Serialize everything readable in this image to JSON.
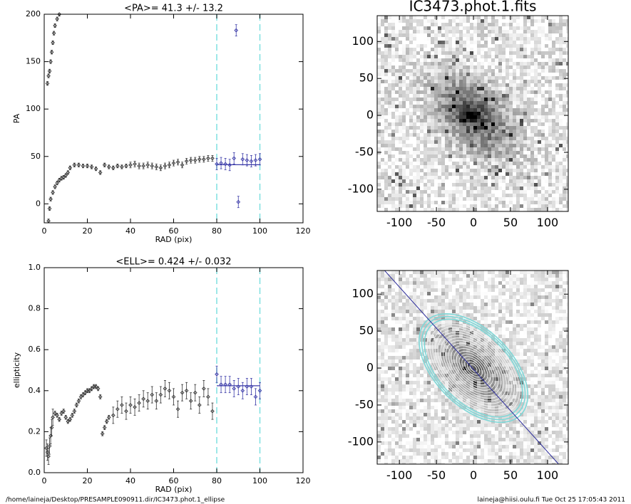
{
  "chart_data": [
    {
      "type": "scatter",
      "title": "<PA>=  41.3 +/-  13.2",
      "xlabel": "RAD (pix)",
      "ylabel": "PA",
      "xlim": [
        0,
        120
      ],
      "ylim": [
        -20,
        200
      ],
      "xticks": [
        0,
        20,
        40,
        60,
        80,
        100,
        120
      ],
      "yticks": [
        0,
        50,
        100,
        150,
        200
      ],
      "x": [
        1.5,
        2,
        2.5,
        3,
        3.5,
        4,
        4.5,
        5,
        6,
        7,
        2,
        2.5,
        3,
        4,
        5,
        6,
        7,
        8,
        9,
        10,
        11,
        12,
        14,
        16,
        18,
        20,
        22,
        24,
        26,
        28,
        30,
        32,
        34,
        36,
        38,
        40,
        42,
        44,
        46,
        48,
        50,
        52,
        54,
        56,
        58,
        60,
        62,
        64,
        66,
        68,
        70,
        72,
        74,
        76,
        78,
        80,
        82,
        84,
        86,
        88,
        89,
        90,
        92,
        94,
        96,
        98,
        100
      ],
      "values": [
        127,
        135,
        140,
        150,
        160,
        170,
        180,
        188,
        195,
        200,
        -18,
        -5,
        5,
        12,
        18,
        22,
        25,
        27,
        28,
        30,
        33,
        38,
        41,
        41,
        40,
        40,
        39,
        37,
        33,
        41,
        39,
        38,
        40,
        39,
        40,
        41,
        42,
        40,
        40,
        41,
        40,
        39,
        38,
        40,
        41,
        43,
        44,
        41,
        45,
        46,
        46,
        47,
        47,
        48,
        48,
        42,
        43,
        42,
        41,
        48,
        183,
        2,
        47,
        46,
        45,
        46,
        47
      ],
      "errors": [
        2,
        2,
        2,
        2,
        2,
        2,
        2,
        2,
        2,
        2,
        2,
        2,
        2,
        2,
        2,
        2,
        2,
        2,
        2,
        2,
        2,
        2,
        2,
        2,
        2,
        2,
        2,
        2,
        2,
        2,
        2,
        2,
        2,
        2,
        2,
        3,
        3,
        3,
        3,
        3,
        3,
        3,
        3,
        3,
        3,
        3,
        3,
        3,
        3,
        3,
        3,
        3,
        3,
        3,
        3,
        6,
        6,
        6,
        6,
        6,
        6,
        6,
        6,
        6,
        6,
        6,
        6
      ],
      "color": "#333333",
      "fit_range": [
        80,
        100
      ],
      "fit_color": "#3a3aa8",
      "mean": 41.3,
      "vlines": [
        80,
        100
      ],
      "vline_color": "#7fe0e0"
    },
    {
      "type": "image",
      "title": "IC3473.phot.1.fits",
      "xlim": [
        -130,
        128
      ],
      "ylim": [
        -130,
        135
      ],
      "xticks": [
        -100,
        -50,
        0,
        50,
        100
      ],
      "yticks": [
        -100,
        -50,
        0,
        50,
        100
      ],
      "contours": false
    },
    {
      "type": "scatter",
      "title": "<ELL>= 0.424 +/-  0.032",
      "xlabel": "RAD (pix)",
      "ylabel": "ellipticity",
      "xlim": [
        0,
        120
      ],
      "ylim": [
        0,
        1
      ],
      "xticks": [
        0,
        20,
        40,
        60,
        80,
        100,
        120
      ],
      "yticks": [
        {
          "value": 0,
          "label": "0.0"
        },
        0.2,
        0.4,
        0.6,
        0.8,
        {
          "value": 1,
          "label": "1.0"
        }
      ],
      "x": [
        1,
        1.5,
        2,
        2.5,
        3,
        3.5,
        4,
        5,
        6,
        7,
        8,
        9,
        10,
        11,
        12,
        13,
        14,
        15,
        16,
        17,
        18,
        19,
        20,
        21,
        22,
        23,
        24,
        25,
        26,
        27,
        28,
        29,
        30,
        32,
        34,
        36,
        38,
        40,
        42,
        44,
        46,
        48,
        50,
        52,
        54,
        56,
        58,
        60,
        62,
        64,
        66,
        68,
        70,
        72,
        74,
        76,
        78,
        80,
        82,
        84,
        86,
        88,
        90,
        92,
        94,
        96,
        98,
        100
      ],
      "values": [
        0.12,
        0.1,
        0.08,
        0.13,
        0.18,
        0.22,
        0.27,
        0.29,
        0.28,
        0.26,
        0.29,
        0.3,
        0.27,
        0.25,
        0.26,
        0.28,
        0.3,
        0.33,
        0.35,
        0.37,
        0.38,
        0.39,
        0.4,
        0.4,
        0.41,
        0.42,
        0.42,
        0.41,
        0.37,
        0.19,
        0.22,
        0.25,
        0.27,
        0.28,
        0.31,
        0.33,
        0.3,
        0.33,
        0.32,
        0.34,
        0.36,
        0.35,
        0.38,
        0.35,
        0.38,
        0.41,
        0.4,
        0.37,
        0.31,
        0.39,
        0.4,
        0.35,
        0.39,
        0.33,
        0.41,
        0.37,
        0.3,
        0.48,
        0.43,
        0.43,
        0.43,
        0.41,
        0.42,
        0.4,
        0.42,
        0.42,
        0.37,
        0.4
      ],
      "errors": [
        0.04,
        0.04,
        0.04,
        0.04,
        0.04,
        0.04,
        0.04,
        0.01,
        0.01,
        0.01,
        0.01,
        0.01,
        0.01,
        0.01,
        0.01,
        0.01,
        0.01,
        0.01,
        0.01,
        0.01,
        0.01,
        0.01,
        0.01,
        0.01,
        0.01,
        0.01,
        0.01,
        0.01,
        0.01,
        0.01,
        0.01,
        0.01,
        0.01,
        0.04,
        0.04,
        0.04,
        0.04,
        0.04,
        0.04,
        0.04,
        0.04,
        0.04,
        0.04,
        0.04,
        0.04,
        0.04,
        0.04,
        0.04,
        0.04,
        0.04,
        0.04,
        0.04,
        0.04,
        0.04,
        0.04,
        0.04,
        0.04,
        0.04,
        0.04,
        0.04,
        0.04,
        0.04,
        0.04,
        0.04,
        0.04,
        0.04,
        0.04,
        0.04
      ],
      "color": "#333333",
      "fit_range": [
        80,
        100
      ],
      "fit_color": "#3a3aa8",
      "mean": 0.424,
      "vlines": [
        80,
        100
      ],
      "vline_color": "#7fe0e0"
    },
    {
      "type": "image",
      "xlim": [
        -130,
        128
      ],
      "ylim": [
        -130,
        132
      ],
      "xticks": [
        -100,
        -50,
        0,
        50,
        100
      ],
      "yticks": [
        -100,
        -50,
        0,
        50,
        100
      ],
      "contours": true
    }
  ],
  "footer": {
    "left": "/home/laineja/Desktop/PRESAMPLE090911.dir/IC3473.phot.1_ellipse",
    "right": "laineja@hiisi.oulu.fi  Tue Oct 25 17:05:43 2011"
  }
}
